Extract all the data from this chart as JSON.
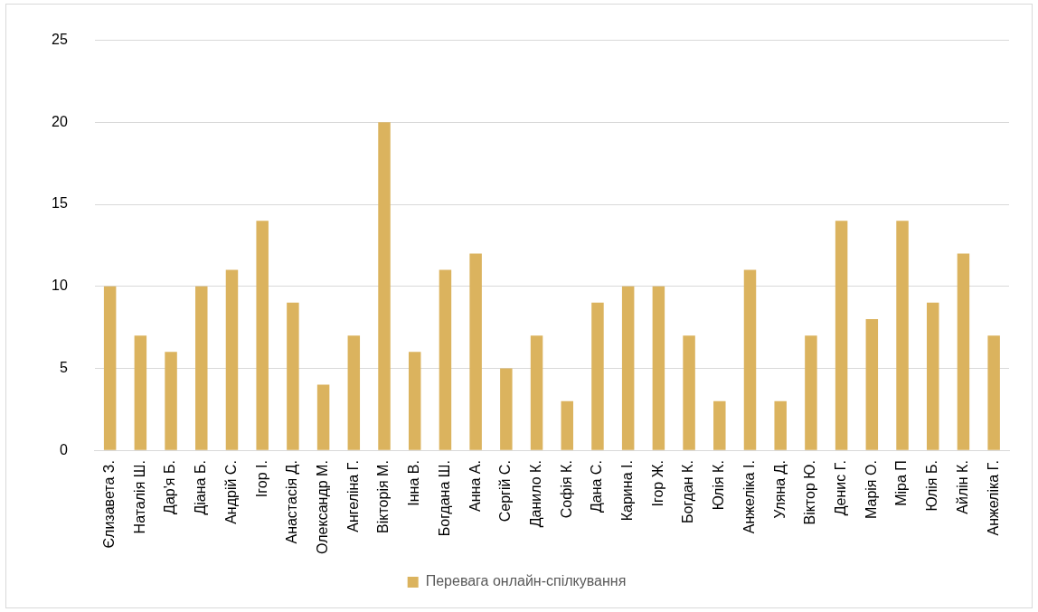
{
  "chart_data": {
    "type": "bar",
    "categories": [
      "Єлизавета З.",
      "Наталія Ш.",
      "Дар'я Б.",
      "Діана Б.",
      "Андрій С.",
      "Ігор І.",
      "Анастасія Д.",
      "Олександр М.",
      "Ангеліна Г.",
      "Вікторія М.",
      "Інна В.",
      "Богдана Ш.",
      "Анна А.",
      "Сергій С.",
      "Данило К.",
      "Софія К.",
      "Дана С.",
      "Карина І.",
      "Ігор Ж.",
      "Богдан К.",
      "Юлія К.",
      "Анжеліка І.",
      "Уляна Д.",
      "Віктор Ю.",
      "Денис Г.",
      "Марія О.",
      "Міра П",
      "Юлія Б.",
      "Айлін К.",
      "Анжеліка Г."
    ],
    "series": [
      {
        "name": "Перевага онлайн-спілкування",
        "color": "#dbb35e",
        "values": [
          10,
          7,
          6,
          10,
          11,
          14,
          9,
          4,
          7,
          20,
          6,
          11,
          12,
          5,
          7,
          3,
          9,
          10,
          10,
          7,
          3,
          11,
          3,
          7,
          14,
          8,
          14,
          9,
          12,
          7
        ]
      }
    ],
    "ylim": [
      0,
      25
    ],
    "yticks": [
      0,
      5,
      10,
      15,
      20,
      25
    ],
    "grid": "y",
    "legend": "bottom"
  }
}
